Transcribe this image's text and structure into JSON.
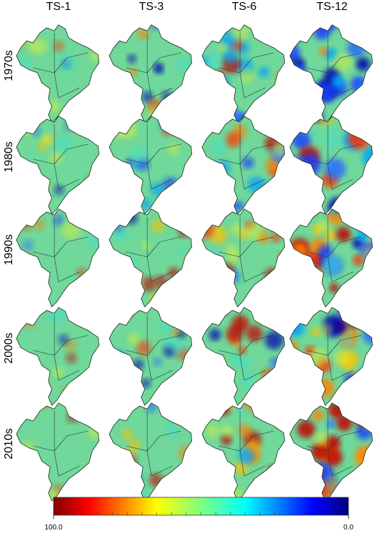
{
  "columns": [
    "TS-1",
    "TS-3",
    "TS-6",
    "TS-12"
  ],
  "rows": [
    "1970s",
    "1980s",
    "1990s",
    "2000s",
    "2010s"
  ],
  "colorbar": {
    "ticks": [
      {
        "value": 100,
        "label": "100.0"
      },
      {
        "value": 0,
        "label": "0.0"
      }
    ]
  }
}
